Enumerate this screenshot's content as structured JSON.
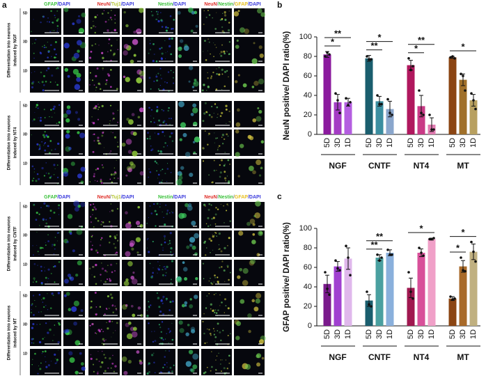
{
  "panel_a": {
    "label": "a",
    "blocks": [
      {
        "headers": [
          [
            {
              "text": "GFAP",
              "color": "#3cc23c"
            },
            {
              "text": "/DAPI",
              "color": "#3a3adc"
            }
          ],
          [
            {
              "text": "NeuN",
              "color": "#e0302a"
            },
            {
              "text": "/",
              "color": "#888888"
            },
            {
              "text": "Tuj1",
              "color": "#b8c83a"
            },
            {
              "text": "/DAPI",
              "color": "#3a3adc"
            }
          ],
          [
            {
              "text": "Nestin",
              "color": "#3cc23c"
            },
            {
              "text": "/DAPI",
              "color": "#3a3adc"
            }
          ],
          [
            {
              "text": "NeuN",
              "color": "#e0302a"
            },
            {
              "text": "/",
              "color": "#888888"
            },
            {
              "text": "Nestin",
              "color": "#3cc23c"
            },
            {
              "text": "/",
              "color": "#888888"
            },
            {
              "text": "GFAP",
              "color": "#e8c020"
            },
            {
              "text": "/DAPI",
              "color": "#3a3adc"
            }
          ]
        ],
        "groups": [
          {
            "title": [
              "Differentiation into neurons",
              "induced by NGF"
            ],
            "rows": [
              "5D",
              "3D",
              "1D"
            ]
          },
          {
            "title": [
              "Differentiation into neurons",
              "induced by NT4"
            ],
            "rows": [
              "5D",
              "3D",
              "1D"
            ]
          }
        ]
      },
      {
        "headers": [
          [
            {
              "text": "GFAP",
              "color": "#3cc23c"
            },
            {
              "text": "/DAPI",
              "color": "#3a3adc"
            }
          ],
          [
            {
              "text": "NeuN",
              "color": "#e0302a"
            },
            {
              "text": "/",
              "color": "#888888"
            },
            {
              "text": "Tuj1",
              "color": "#b8c83a"
            },
            {
              "text": "/DAPI",
              "color": "#3a3adc"
            }
          ],
          [
            {
              "text": "Nestin",
              "color": "#3cc23c"
            },
            {
              "text": "/DAPI",
              "color": "#3a3adc"
            }
          ],
          [
            {
              "text": "NeuN",
              "color": "#e0302a"
            },
            {
              "text": "/",
              "color": "#888888"
            },
            {
              "text": "Nestin",
              "color": "#3cc23c"
            },
            {
              "text": "/",
              "color": "#888888"
            },
            {
              "text": "GFAP",
              "color": "#e8c020"
            },
            {
              "text": "/DAPI",
              "color": "#3a3adc"
            }
          ]
        ],
        "groups": [
          {
            "title": [
              "Differentiation into neurons",
              "induced by CNTF"
            ],
            "rows": [
              "5D",
              "3D",
              "1D"
            ]
          },
          {
            "title": [
              "Differentiation into neurons",
              "induced by MT"
            ],
            "rows": [
              "5D",
              "3D",
              "1D"
            ]
          }
        ]
      }
    ]
  },
  "chart_data": [
    {
      "type": "bar",
      "label": "b",
      "ylabel": "NeuN positive/ DAPI ratio(%)",
      "ylim": [
        0,
        100
      ],
      "yticks": [
        0,
        20,
        40,
        60,
        80,
        100
      ],
      "groups": [
        {
          "name": "NGF",
          "categories": [
            "5D",
            "3D",
            "1D"
          ],
          "colors": [
            "#8b1a9e",
            "#a43cc4",
            "#b45ee0"
          ],
          "values": [
            82,
            33,
            33
          ],
          "errors": [
            3,
            8,
            4
          ],
          "points": [
            [
              80,
              84,
              82
            ],
            [
              42,
              35,
              22
            ],
            [
              37,
              30,
              33
            ]
          ],
          "annotations": [
            {
              "label": "*",
              "pair": [
                0,
                1
              ]
            },
            {
              "label": "**",
              "pair": [
                0,
                2
              ]
            }
          ]
        },
        {
          "name": "CNTF",
          "categories": [
            "5D",
            "3D",
            "1D"
          ],
          "colors": [
            "#1a5e6e",
            "#3b8ea0",
            "#8aa6cc"
          ],
          "values": [
            78,
            34,
            26
          ],
          "errors": [
            3,
            5,
            8
          ],
          "points": [
            [
              80,
              77,
              77
            ],
            [
              40,
              31,
              31
            ],
            [
              36,
              22,
              20
            ]
          ],
          "annotations": [
            {
              "label": "**",
              "pair": [
                0,
                1
              ]
            },
            {
              "label": "*",
              "pair": [
                0,
                2
              ]
            }
          ]
        },
        {
          "name": "NT4",
          "categories": [
            "5D",
            "3D",
            "1D"
          ],
          "colors": [
            "#b0185e",
            "#c93a86",
            "#e07ab0"
          ],
          "values": [
            71,
            29,
            10
          ],
          "errors": [
            5,
            11,
            7
          ],
          "points": [
            [
              78,
              66,
              70
            ],
            [
              45,
              22,
              20
            ],
            [
              20,
              5,
              5
            ]
          ],
          "annotations": [
            {
              "label": "*",
              "pair": [
                0,
                1
              ]
            },
            {
              "label": "**",
              "pair": [
                0,
                2
              ]
            }
          ]
        },
        {
          "name": "MT",
          "categories": [
            "5D",
            "3D",
            "1D"
          ],
          "colors": [
            "#8b4513",
            "#a0702a",
            "#b8a060"
          ],
          "values": [
            79,
            56,
            35
          ],
          "errors": [
            1,
            6,
            6
          ],
          "points": [
            [
              79,
              80,
              78
            ],
            [
              62,
              60,
              45
            ],
            [
              42,
              35,
              26
            ]
          ],
          "annotations": [
            {
              "label": "*",
              "pair": [
                0,
                2
              ]
            }
          ]
        }
      ]
    },
    {
      "type": "bar",
      "label": "c",
      "ylabel": "GFAP positive/ DAPI ratio(%)",
      "ylim": [
        0,
        100
      ],
      "yticks": [
        0,
        20,
        40,
        60,
        80,
        100
      ],
      "groups": [
        {
          "name": "NGF",
          "categories": [
            "5D",
            "3D",
            "1D"
          ],
          "colors": [
            "#7a1a8c",
            "#a040d0",
            "#e0b8ec"
          ],
          "values": [
            43,
            61,
            69
          ],
          "errors": [
            9,
            5,
            11
          ],
          "points": [
            [
              55,
              38,
              32
            ],
            [
              67,
              59,
              57
            ],
            [
              82,
              70,
              52
            ]
          ],
          "annotations": []
        },
        {
          "name": "CNTF",
          "categories": [
            "5D",
            "3D",
            "1D"
          ],
          "colors": [
            "#1a5e6e",
            "#4aa0a0",
            "#8ab0dc"
          ],
          "values": [
            26,
            70,
            75
          ],
          "errors": [
            6,
            3,
            3
          ],
          "points": [
            [
              35,
              22,
              20
            ],
            [
              73,
              67,
              70
            ],
            [
              78,
              73,
              73
            ]
          ],
          "annotations": [
            {
              "label": "**",
              "pair": [
                0,
                1
              ]
            },
            {
              "label": "**",
              "pair": [
                0,
                2
              ]
            }
          ]
        },
        {
          "name": "NT4",
          "categories": [
            "5D",
            "3D",
            "1D"
          ],
          "colors": [
            "#a01850",
            "#d8509a",
            "#f0a0c8"
          ],
          "values": [
            39,
            75,
            89
          ],
          "errors": [
            10,
            4,
            1
          ],
          "points": [
            [
              55,
              35,
              28
            ],
            [
              80,
              75,
              72
            ],
            [
              89,
              89,
              90
            ]
          ],
          "annotations": [
            {
              "label": "*",
              "pair": [
                0,
                2
              ]
            }
          ]
        },
        {
          "name": "MT",
          "categories": [
            "5D",
            "3D",
            "1D"
          ],
          "colors": [
            "#8b4513",
            "#a86a2a",
            "#c0b080"
          ],
          "values": [
            28,
            61,
            76
          ],
          "errors": [
            2,
            6,
            8
          ],
          "points": [
            [
              30,
              27,
              28
            ],
            [
              70,
              57,
              56
            ],
            [
              86,
              76,
              66
            ]
          ],
          "annotations": [
            {
              "label": "*",
              "pair": [
                0,
                1
              ]
            },
            {
              "label": "*",
              "pair": [
                0,
                2
              ]
            }
          ]
        }
      ]
    }
  ]
}
